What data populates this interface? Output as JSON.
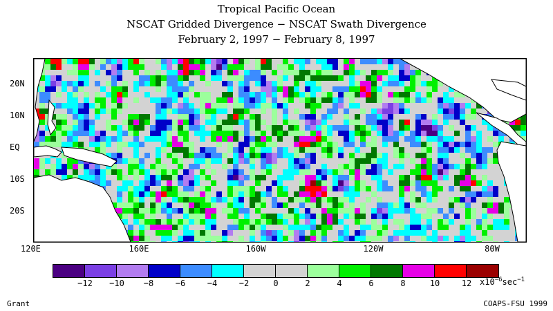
{
  "title": {
    "line1": "Tropical Pacific Ocean",
    "line2": "NSCAT Gridded Divergence − NSCAT Swath Divergence",
    "line3": "February 2, 1997 − February 8, 1997"
  },
  "latitude_labels": [
    "20N",
    "10N",
    "EQ",
    "10S",
    "20S"
  ],
  "longitude_labels": [
    "120E",
    "160E",
    "160W",
    "120W",
    "80W"
  ],
  "colorbar": {
    "colors": [
      "#4b0082",
      "#7b3fe4",
      "#b27cf0",
      "#0000c8",
      "#3c8cff",
      "#00ffff",
      "#d3d3d3",
      "#d3d3d3",
      "#9cff9c",
      "#00f000",
      "#007800",
      "#e600e6",
      "#ff0000",
      "#9b0000"
    ],
    "ticks": [
      "−12",
      "−10",
      "−8",
      "−6",
      "−4",
      "−2",
      "0",
      "2",
      "4",
      "6",
      "8",
      "10",
      "12"
    ],
    "units_base": "x10",
    "units_exp": "−6",
    "units_tail": "sec",
    "units_tail_exp": "−1"
  },
  "credits": {
    "left": "Grant",
    "right": "COAPS-FSU 1999"
  }
}
